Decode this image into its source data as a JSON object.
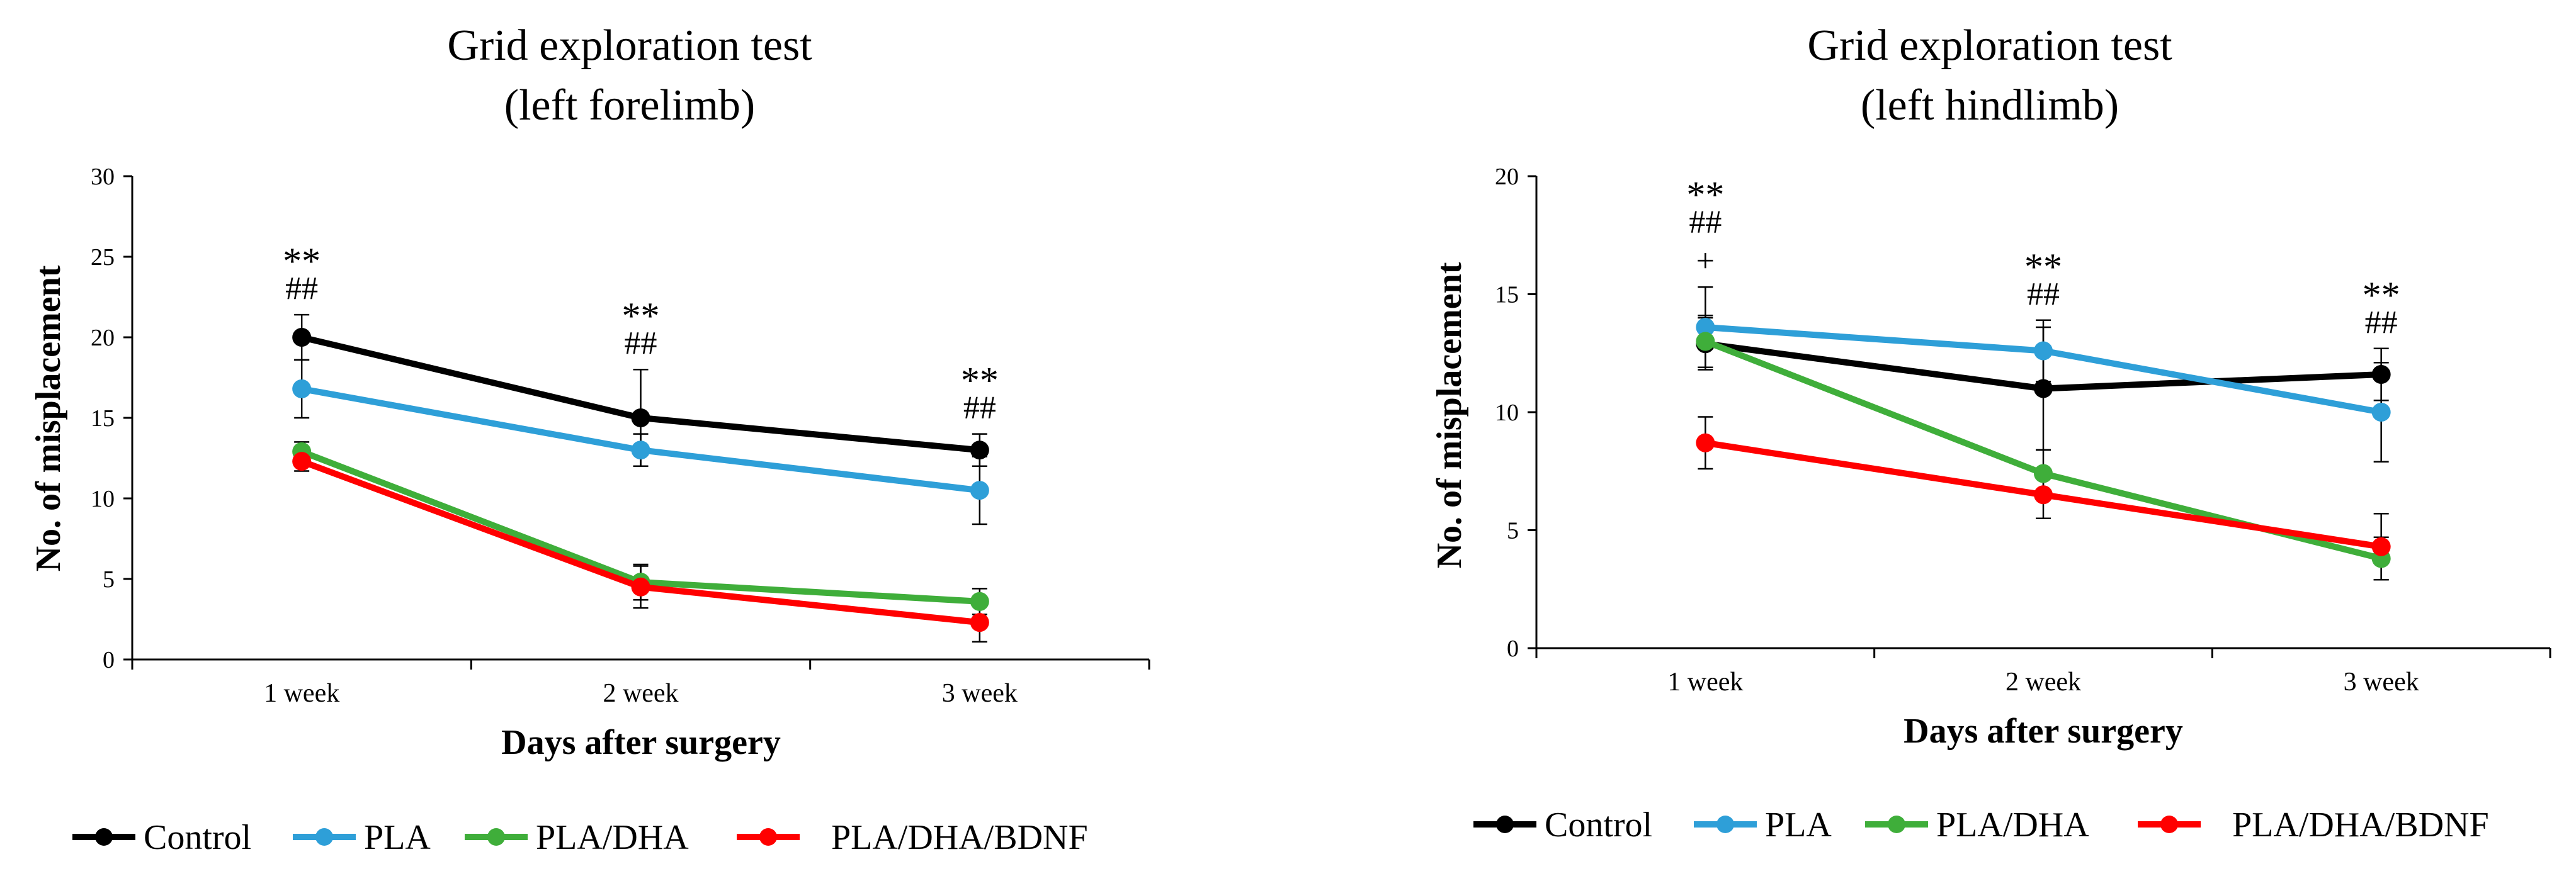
{
  "chart_data": [
    {
      "type": "line",
      "title": "Grid exploration  test",
      "subtitle": "(left forelimb)",
      "xlabel": "Days after surgery",
      "ylabel": "No. of misplacement",
      "categories": [
        "1 week",
        "2 week",
        "3 week"
      ],
      "ylim": [
        0,
        30
      ],
      "yticks": [
        0,
        5,
        10,
        15,
        20,
        25,
        30
      ],
      "series": [
        {
          "name": "Control",
          "color": "#000000",
          "values": [
            20.0,
            15.0,
            13.0
          ],
          "errors": [
            1.4,
            3.0,
            1.0
          ]
        },
        {
          "name": "PLA",
          "color": "#2e9fd8",
          "values": [
            16.8,
            13.0,
            10.5
          ],
          "errors": [
            1.8,
            1.0,
            2.1
          ]
        },
        {
          "name": "PLA/DHA",
          "color": "#3fae3a",
          "values": [
            12.9,
            4.8,
            3.6
          ],
          "errors": [
            0.6,
            1.1,
            0.8
          ]
        },
        {
          "name": "PLA/DHA/BDNF",
          "color": "#ff0000",
          "values": [
            12.3,
            4.5,
            2.3
          ],
          "errors": [
            0.6,
            1.3,
            1.2
          ]
        }
      ],
      "annotations": [
        {
          "category": "1 week",
          "lines": [
            "**",
            "##"
          ]
        },
        {
          "category": "2 week",
          "lines": [
            "**",
            "##"
          ]
        },
        {
          "category": "3 week",
          "lines": [
            "**",
            "##"
          ]
        }
      ],
      "legend_position": "bottom"
    },
    {
      "type": "line",
      "title": "Grid exploration  test",
      "subtitle": "(left hindlimb)",
      "xlabel": "Days after surgery",
      "ylabel": "No. of misplacement",
      "categories": [
        "1 week",
        "2 week",
        "3 week"
      ],
      "ylim": [
        0,
        20
      ],
      "yticks": [
        0,
        5,
        10,
        15,
        20
      ],
      "series": [
        {
          "name": "Control",
          "color": "#000000",
          "values": [
            12.9,
            11.0,
            11.6
          ],
          "errors": [
            1.1,
            2.6,
            1.1
          ]
        },
        {
          "name": "PLA",
          "color": "#2e9fd8",
          "values": [
            13.6,
            12.6,
            10.0
          ],
          "errors": [
            1.7,
            1.3,
            2.1
          ]
        },
        {
          "name": "PLA/DHA",
          "color": "#3fae3a",
          "values": [
            13.0,
            7.4,
            3.8
          ],
          "errors": [
            1.1,
            1.0,
            0.9
          ]
        },
        {
          "name": "PLA/DHA/BDNF",
          "color": "#ff0000",
          "values": [
            8.7,
            6.5,
            4.3
          ],
          "errors": [
            1.1,
            1.0,
            1.4
          ]
        }
      ],
      "annotations": [
        {
          "category": "1 week",
          "lines": [
            "**",
            "##",
            "+"
          ]
        },
        {
          "category": "2 week",
          "lines": [
            "**",
            "##"
          ]
        },
        {
          "category": "3 week",
          "lines": [
            "**",
            "##"
          ]
        }
      ],
      "legend_position": "bottom"
    }
  ]
}
